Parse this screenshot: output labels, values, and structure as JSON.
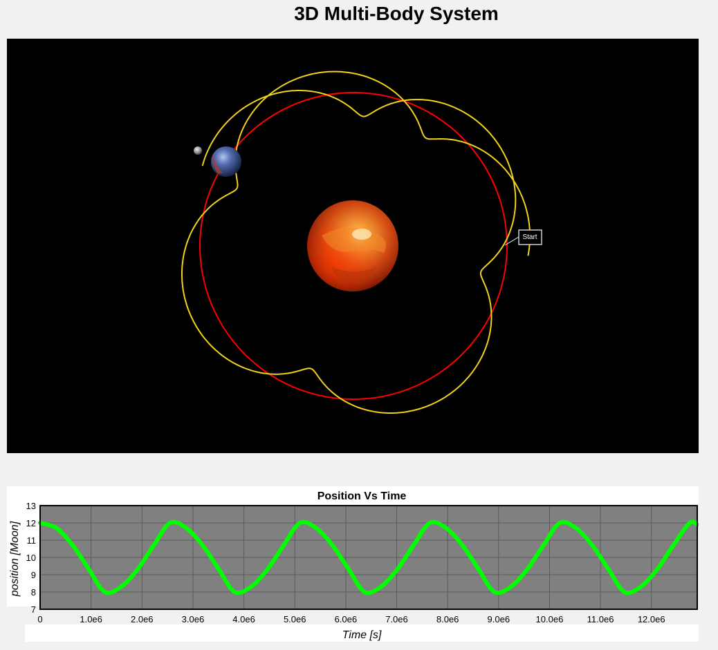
{
  "page": {
    "title": "3D Multi-Body System"
  },
  "scene": {
    "start_label": "Start",
    "colors": {
      "background": "#000000",
      "earth_orbit": "#ff0000",
      "moon_orbit": "#f2d31b",
      "sun": "#e0601a",
      "earth": "#4f68a8",
      "moon": "#9a9a9a"
    },
    "bodies": [
      "sun",
      "earth",
      "moon"
    ]
  },
  "chart_data": {
    "type": "line",
    "title": "Position Vs Time",
    "xlabel": "Time [s]",
    "ylabel": "position [Moon]",
    "xlim": [
      0,
      12900000
    ],
    "ylim": [
      7,
      13
    ],
    "x_ticks": [
      0,
      1000000,
      2000000,
      3000000,
      4000000,
      5000000,
      6000000,
      7000000,
      8000000,
      9000000,
      10000000,
      11000000,
      12000000
    ],
    "x_tick_labels": [
      "0",
      "1.0e6",
      "2.0e6",
      "3.0e6",
      "4.0e6",
      "5.0e6",
      "6.0e6",
      "7.0e6",
      "8.0e6",
      "9.0e6",
      "10.0e6",
      "11.0e6",
      "12.0e6"
    ],
    "y_ticks": [
      7,
      8,
      9,
      10,
      11,
      12,
      13
    ],
    "y_tick_labels": [
      "7",
      "8",
      "9",
      "10",
      "11",
      "12",
      "13"
    ],
    "grid": true,
    "plot_background": "#808080",
    "series": [
      {
        "color": "#00ff00",
        "x": [
          0,
          320000,
          640000,
          960000,
          1270000,
          1590000,
          1910000,
          2230000,
          2550000,
          2870000,
          3190000,
          3510000,
          3820000,
          4140000,
          4460000,
          4780000,
          5100000,
          5420000,
          5740000,
          6060000,
          6370000,
          6690000,
          7010000,
          7330000,
          7650000,
          7970000,
          8290000,
          8610000,
          8920000,
          9240000,
          9560000,
          9880000,
          10200000,
          10520000,
          10840000,
          11160000,
          11470000,
          11790000,
          12110000,
          12430000,
          12750000,
          12900000
        ],
        "y": [
          12.0,
          11.7,
          10.7,
          9.3,
          8.0,
          8.3,
          9.3,
          10.7,
          12.0,
          11.7,
          10.7,
          9.3,
          8.0,
          8.3,
          9.3,
          10.7,
          12.0,
          11.7,
          10.7,
          9.3,
          8.0,
          8.3,
          9.3,
          10.7,
          12.0,
          11.7,
          10.7,
          9.3,
          8.0,
          8.3,
          9.3,
          10.7,
          12.0,
          11.7,
          10.7,
          9.3,
          8.0,
          8.3,
          9.3,
          10.7,
          12.0,
          11.9
        ]
      }
    ]
  }
}
